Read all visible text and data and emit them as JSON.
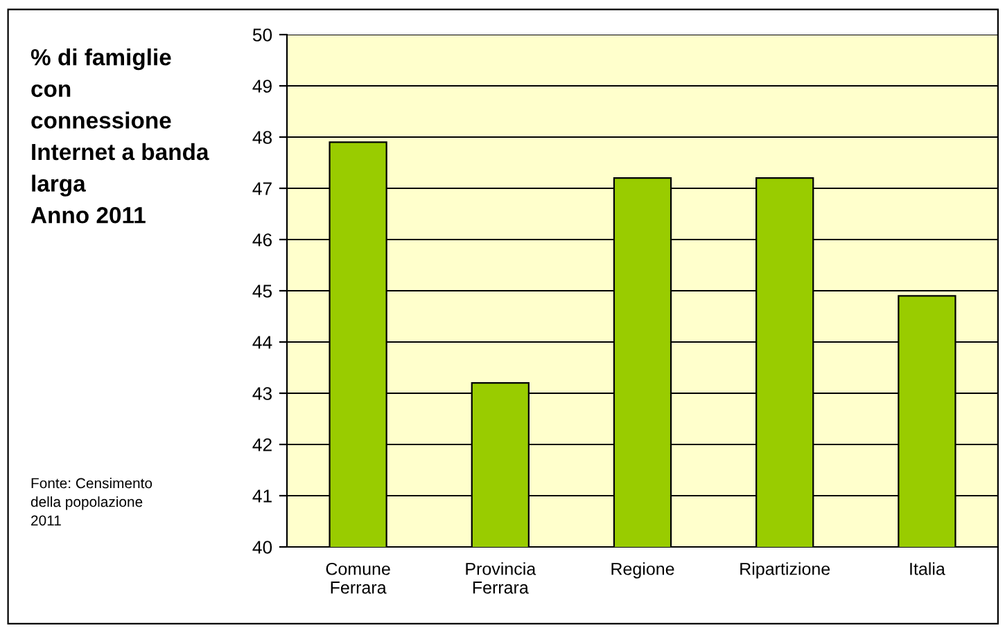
{
  "chart_data": {
    "type": "bar",
    "title": "% di famiglie\ncon\nconnessione\nInternet a banda\nlarga\nAnno 2011",
    "categories": [
      "Comune\nFerrara",
      "Provincia\nFerrara",
      "Regione",
      "Ripartizione",
      "Italia"
    ],
    "values": [
      47.9,
      43.2,
      47.2,
      47.2,
      44.9
    ],
    "color": "#99cc00",
    "ylim": [
      40,
      50
    ],
    "yticks": [
      40,
      41,
      42,
      43,
      44,
      45,
      46,
      47,
      48,
      49,
      50
    ],
    "grid": "y",
    "legend": false,
    "annotations": [
      "Fonte: Censimento\ndella popolazione\n2011"
    ]
  }
}
